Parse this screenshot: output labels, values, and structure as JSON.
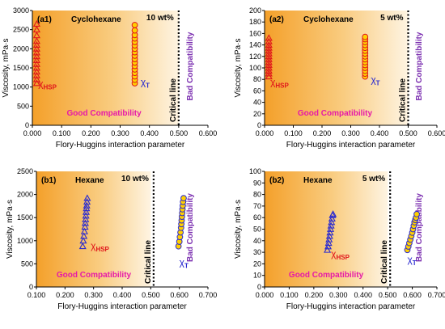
{
  "chart_data": [
    {
      "type": "scatter",
      "panel_label": "(a1)",
      "solvent": "Cyclohexane",
      "concentration": "10 wt%",
      "ylabel": "Viscosity, mPa·s",
      "xlabel": "Flory-Huggins  interaction parameter",
      "xlim": [
        0,
        0.6
      ],
      "ylim": [
        0,
        3000
      ],
      "xticks": [
        "0.000",
        "0.100",
        "0.200",
        "0.300",
        "0.400",
        "0.500",
        "0.600"
      ],
      "yticks": [
        "0",
        "500",
        "1000",
        "1500",
        "2000",
        "2500",
        "3000"
      ],
      "critical_x": 0.5,
      "shade_to_x": 0.5,
      "critical_label": "Critical line",
      "good_label": "Good Compatibility",
      "bad_label": "Bad Compatibility",
      "series": [
        {
          "name": "χHSP",
          "marker": "triangle",
          "color": "#e0151b",
          "x": [
            0.015,
            0.015,
            0.015,
            0.015,
            0.015,
            0.015,
            0.015,
            0.015,
            0.015,
            0.015,
            0.015,
            0.015,
            0.015,
            0.015,
            0.015
          ],
          "y": [
            1100,
            1200,
            1300,
            1400,
            1500,
            1600,
            1700,
            1800,
            1900,
            2000,
            2100,
            2200,
            2350,
            2500,
            2650
          ]
        },
        {
          "name": "χT",
          "marker": "circle",
          "color": "#e0151b",
          "fill": "#ffd000",
          "x": [
            0.35,
            0.35,
            0.35,
            0.35,
            0.35,
            0.35,
            0.35,
            0.35,
            0.35,
            0.35,
            0.35,
            0.35,
            0.35,
            0.35,
            0.35,
            0.35,
            0.35
          ],
          "y": [
            1100,
            1190,
            1280,
            1370,
            1460,
            1550,
            1640,
            1730,
            1820,
            1910,
            2000,
            2090,
            2180,
            2270,
            2360,
            2480,
            2620
          ]
        }
      ],
      "labels": [
        {
          "text": "χ",
          "sub": "HSP",
          "color": "#e0151b",
          "at": [
            0.02,
            1000
          ]
        },
        {
          "text": "χ",
          "sub": "T",
          "color": "#2a2ad0",
          "at": [
            0.37,
            1050
          ]
        }
      ]
    },
    {
      "type": "scatter",
      "panel_label": "(a2)",
      "solvent": "Cyclohexane",
      "concentration": "5 wt%",
      "ylabel": "Viscosity, mPa·s",
      "xlabel": "Flory-Huggins  interaction parameter",
      "xlim": [
        0,
        0.6
      ],
      "ylim": [
        0,
        200
      ],
      "xticks": [
        "0.000",
        "0.100",
        "0.200",
        "0.300",
        "0.400",
        "0.500",
        "0.600"
      ],
      "yticks": [
        "0",
        "20",
        "40",
        "60",
        "80",
        "100",
        "120",
        "140",
        "160",
        "180",
        "200"
      ],
      "critical_x": 0.5,
      "shade_to_x": 0.5,
      "critical_label": "Critical line",
      "good_label": "Good Compatibility",
      "bad_label": "Bad Compatibility",
      "series": [
        {
          "name": "χHSP",
          "marker": "triangle",
          "color": "#e0151b",
          "x": [
            0.015,
            0.015,
            0.015,
            0.015,
            0.015,
            0.015,
            0.015,
            0.015,
            0.015,
            0.015,
            0.015,
            0.015,
            0.015,
            0.015
          ],
          "y": [
            85,
            90,
            95,
            100,
            105,
            110,
            115,
            120,
            125,
            130,
            135,
            140,
            146,
            152
          ]
        },
        {
          "name": "χT",
          "marker": "circle",
          "color": "#e0151b",
          "fill": "#ffd000",
          "x": [
            0.35,
            0.35,
            0.35,
            0.35,
            0.35,
            0.35,
            0.35,
            0.35,
            0.35,
            0.35,
            0.35,
            0.35,
            0.35,
            0.35,
            0.35
          ],
          "y": [
            85,
            90,
            95,
            100,
            105,
            110,
            115,
            120,
            125,
            130,
            135,
            140,
            145,
            150,
            154
          ]
        }
      ],
      "labels": [
        {
          "text": "χ",
          "sub": "HSP",
          "color": "#e0151b",
          "at": [
            0.02,
            70
          ]
        },
        {
          "text": "χ",
          "sub": "T",
          "color": "#2a2ad0",
          "at": [
            0.37,
            74
          ]
        }
      ]
    },
    {
      "type": "scatter",
      "panel_label": "(b1)",
      "solvent": "Hexane",
      "concentration": "10 wt%",
      "ylabel": "Viscosity, mPa·s",
      "xlabel": "Flory-Huggins  interaction parameter",
      "xlim": [
        0.1,
        0.7
      ],
      "ylim": [
        0,
        2500
      ],
      "xticks": [
        "0.100",
        "0.200",
        "0.300",
        "0.400",
        "0.500",
        "0.600",
        "0.700"
      ],
      "yticks": [
        "0",
        "500",
        "1000",
        "1500",
        "2000",
        "2500"
      ],
      "critical_x": 0.51,
      "shade_to_x": 0.5,
      "critical_label": "Critical line",
      "good_label": "Good Compatibility",
      "bad_label": "Bad Compatibility",
      "series": [
        {
          "name": "χHSP",
          "marker": "triangle",
          "color": "#2a2ad0",
          "x": [
            0.262,
            0.264,
            0.266,
            0.268,
            0.27,
            0.271,
            0.272,
            0.273,
            0.274,
            0.275,
            0.276,
            0.277,
            0.278
          ],
          "y": [
            880,
            1000,
            1100,
            1200,
            1300,
            1380,
            1460,
            1540,
            1620,
            1700,
            1760,
            1840,
            1920
          ]
        },
        {
          "name": "χT",
          "marker": "circle",
          "color": "#2a2ad0",
          "fill": "#ffd000",
          "x": [
            0.597,
            0.6,
            0.602,
            0.604,
            0.606,
            0.607,
            0.608,
            0.609,
            0.61,
            0.611,
            0.612,
            0.613,
            0.615
          ],
          "y": [
            880,
            980,
            1080,
            1180,
            1280,
            1360,
            1440,
            1520,
            1600,
            1680,
            1760,
            1840,
            1920
          ]
        }
      ],
      "labels": [
        {
          "text": "χ",
          "sub": "HSP",
          "color": "#e0151b",
          "at": [
            0.29,
            820
          ]
        },
        {
          "text": "χ",
          "sub": "T",
          "color": "#2a2ad0",
          "at": [
            0.6,
            460
          ]
        }
      ]
    },
    {
      "type": "scatter",
      "panel_label": "(b2)",
      "solvent": "Hexane",
      "concentration": "5 wt%",
      "ylabel": "Viscosity, mPa·s",
      "xlabel": "Flory-Huggins  interaction parameter",
      "xlim": [
        0,
        0.7
      ],
      "ylim": [
        0,
        100
      ],
      "xticks": [
        "0.000",
        "0.100",
        "0.200",
        "0.300",
        "0.400",
        "0.500",
        "0.600",
        "0.700"
      ],
      "yticks": [
        "0",
        "10",
        "20",
        "30",
        "40",
        "50",
        "60",
        "70",
        "80",
        "90",
        "100"
      ],
      "critical_x": 0.51,
      "shade_to_x": 0.5,
      "critical_label": "Critical line",
      "good_label": "Good Compatibility",
      "bad_label": "Bad Compatibility",
      "series": [
        {
          "name": "χHSP",
          "marker": "triangle",
          "color": "#2a2ad0",
          "x": [
            0.255,
            0.258,
            0.26,
            0.262,
            0.264,
            0.266,
            0.268,
            0.27,
            0.272,
            0.274,
            0.276,
            0.278
          ],
          "y": [
            32,
            35,
            38,
            41,
            44,
            47,
            50,
            53,
            56,
            59,
            62,
            63
          ]
        },
        {
          "name": "χT",
          "marker": "circle",
          "color": "#2a2ad0",
          "fill": "#ffd000",
          "x": [
            0.58,
            0.584,
            0.588,
            0.592,
            0.596,
            0.6,
            0.603,
            0.606,
            0.609,
            0.612,
            0.615,
            0.618
          ],
          "y": [
            32,
            35,
            38,
            41,
            44,
            47,
            50,
            53,
            56,
            58,
            60,
            63
          ]
        }
      ],
      "labels": [
        {
          "text": "χ",
          "sub": "HSP",
          "color": "#e0151b",
          "at": [
            0.27,
            26
          ]
        },
        {
          "text": "χ",
          "sub": "T",
          "color": "#2a2ad0",
          "at": [
            0.58,
            21
          ]
        }
      ]
    }
  ]
}
